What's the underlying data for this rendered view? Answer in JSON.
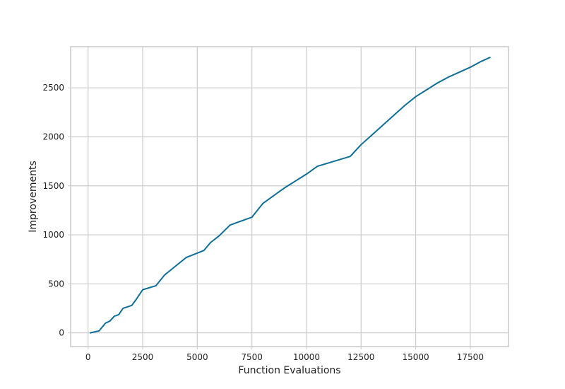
{
  "chart_data": {
    "type": "line",
    "title": "",
    "xlabel": "Function Evaluations",
    "ylabel": "Improvements",
    "xlim": [
      -800,
      19250
    ],
    "ylim": [
      -140,
      2920
    ],
    "xticks": [
      0,
      2500,
      5000,
      7500,
      10000,
      12500,
      15000,
      17500
    ],
    "xtick_labels": [
      "0",
      "2500",
      "5000",
      "7500",
      "10000",
      "12500",
      "15000",
      "17500"
    ],
    "yticks": [
      0,
      500,
      1000,
      1500,
      2000,
      2500
    ],
    "ytick_labels": [
      "0",
      "500",
      "1000",
      "1500",
      "2000",
      "2500"
    ],
    "grid": true,
    "legend": false,
    "series": [
      {
        "color": "#0e6e98",
        "x": [
          100,
          500,
          800,
          1000,
          1200,
          1400,
          1600,
          2000,
          2200,
          2500,
          3100,
          3500,
          4000,
          4500,
          5300,
          5600,
          6000,
          6500,
          7500,
          8000,
          8500,
          9000,
          9500,
          10000,
          10500,
          12000,
          12500,
          13000,
          13500,
          14000,
          14500,
          15000,
          15500,
          16000,
          16500,
          17000,
          17500,
          18000,
          18400
        ],
        "y": [
          0,
          20,
          100,
          120,
          170,
          185,
          250,
          280,
          340,
          440,
          480,
          590,
          680,
          770,
          840,
          920,
          990,
          1100,
          1180,
          1320,
          1400,
          1480,
          1550,
          1620,
          1700,
          1800,
          1920,
          2020,
          2120,
          2220,
          2320,
          2410,
          2480,
          2550,
          2610,
          2660,
          2710,
          2770,
          2810
        ]
      }
    ]
  }
}
